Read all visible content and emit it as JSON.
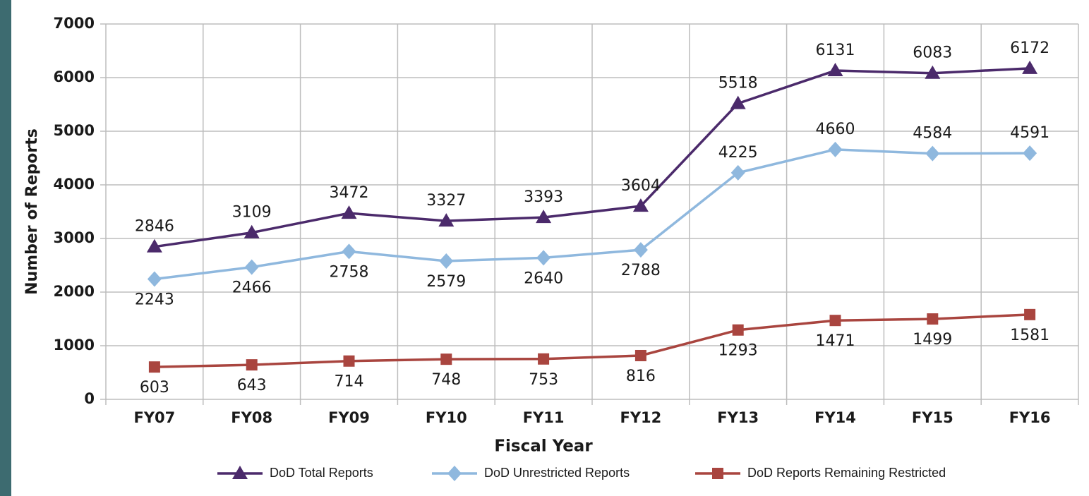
{
  "chart_data": {
    "type": "line",
    "x_label": "Fiscal Year",
    "y_label": "Number of Reports",
    "categories": [
      "FY07",
      "FY08",
      "FY09",
      "FY10",
      "FY11",
      "FY12",
      "FY13",
      "FY14",
      "FY15",
      "FY16"
    ],
    "series": [
      {
        "name": "DoD Total Reports",
        "color": "#4b2a6b",
        "marker": "triangle",
        "values": [
          2846,
          3109,
          3472,
          3327,
          3393,
          3604,
          5518,
          6131,
          6083,
          6172
        ]
      },
      {
        "name": "DoD Unrestricted Reports",
        "color": "#8fb8de",
        "marker": "diamond",
        "values": [
          2243,
          2466,
          2758,
          2579,
          2640,
          2788,
          4225,
          4660,
          4584,
          4591
        ]
      },
      {
        "name": "DoD Reports Remaining Restricted",
        "color": "#a9453f",
        "marker": "square",
        "values": [
          603,
          643,
          714,
          748,
          753,
          816,
          1293,
          1471,
          1499,
          1581
        ]
      }
    ],
    "ylim": [
      0,
      7000
    ],
    "yticks": [
      0,
      1000,
      2000,
      3000,
      4000,
      5000,
      6000,
      7000
    ],
    "grid": true,
    "legend": "bottom"
  }
}
